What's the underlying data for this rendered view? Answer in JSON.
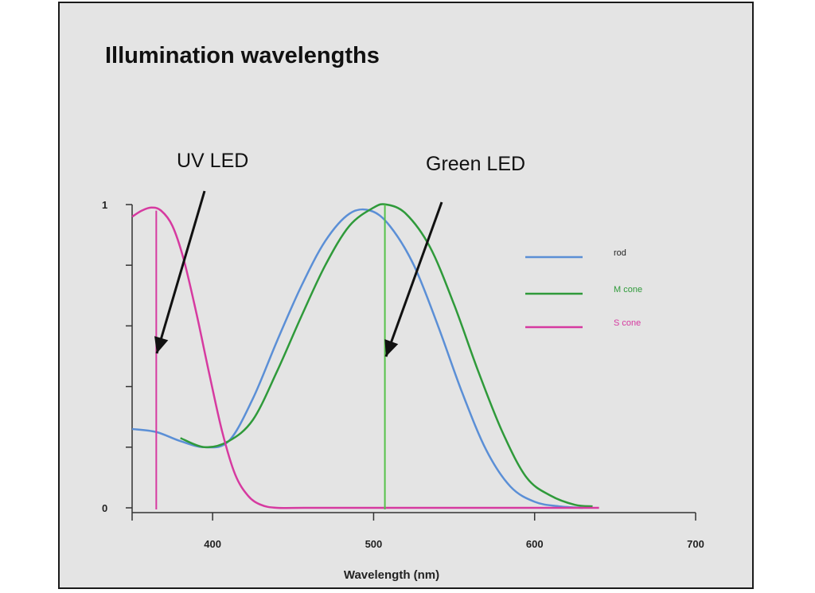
{
  "chart_data": {
    "type": "line",
    "title": "Illumination wavelengths",
    "xlabel": "Wavelength (nm)",
    "ylabel": "",
    "xlim": [
      350,
      700
    ],
    "ylim": [
      0,
      1
    ],
    "x_ticks": [
      400,
      500,
      600,
      700
    ],
    "y_tick_labels": [
      {
        "value": 1,
        "label": "1"
      },
      {
        "value": 0,
        "label": "0"
      }
    ],
    "y_minor_ticks": [
      0.2,
      0.4,
      0.6,
      0.8
    ],
    "legend_position": "right",
    "series": [
      {
        "name": "rod",
        "color": "#5b8fd6",
        "x": [
          350,
          365,
          380,
          395,
          410,
          425,
          440,
          455,
          470,
          485,
          498,
          510,
          525,
          540,
          555,
          570,
          585,
          600,
          615,
          630
        ],
        "y": [
          0.26,
          0.25,
          0.22,
          0.2,
          0.22,
          0.36,
          0.55,
          0.73,
          0.88,
          0.97,
          0.98,
          0.93,
          0.8,
          0.6,
          0.38,
          0.19,
          0.07,
          0.02,
          0.005,
          0.0
        ]
      },
      {
        "name": "M cone",
        "color": "#2f9a3a",
        "x": [
          380,
          395,
          410,
          425,
          440,
          455,
          470,
          485,
          500,
          508,
          520,
          535,
          550,
          565,
          580,
          595,
          610,
          625,
          636
        ],
        "y": [
          0.23,
          0.2,
          0.22,
          0.29,
          0.45,
          0.63,
          0.8,
          0.93,
          0.99,
          1.0,
          0.97,
          0.86,
          0.67,
          0.45,
          0.25,
          0.1,
          0.04,
          0.01,
          0.005
        ]
      },
      {
        "name": "S cone",
        "color": "#d63aa0",
        "x": [
          350,
          356,
          362,
          368,
          375,
          382,
          390,
          398,
          406,
          414,
          422,
          430,
          440,
          460,
          500,
          560,
          640
        ],
        "y": [
          0.96,
          0.98,
          0.99,
          0.98,
          0.93,
          0.82,
          0.64,
          0.44,
          0.25,
          0.11,
          0.04,
          0.01,
          0.0,
          0.0,
          0.0,
          0.0,
          0.0
        ]
      }
    ],
    "leds": [
      {
        "label": "UV LED",
        "wavelength": 365,
        "color": "#d63aa0",
        "top": 0.98
      },
      {
        "label": "Green LED",
        "wavelength": 507,
        "color": "#55c24a",
        "top": 1.0
      }
    ]
  }
}
